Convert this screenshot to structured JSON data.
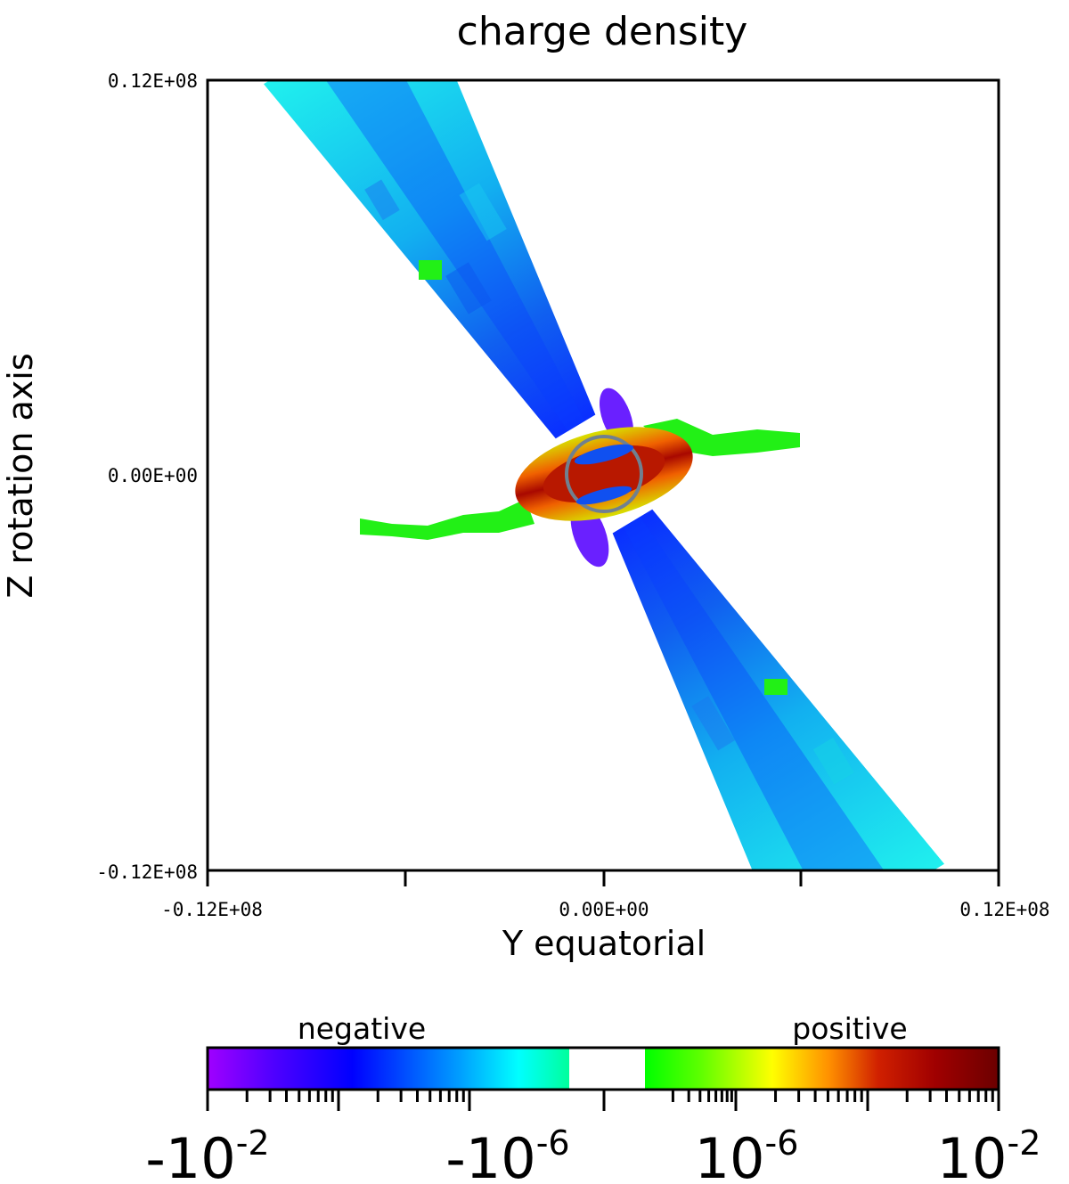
{
  "chart_data": {
    "type": "heatmap",
    "title": "charge density",
    "xlabel": "Y equatorial",
    "ylabel": "Z rotation axis",
    "x_ticks": [
      "-0.12E+08",
      "0.00E+00",
      "0.12E+08"
    ],
    "y_ticks": [
      "0.12E+08",
      "0.00E+00",
      "-0.12E+08"
    ],
    "xlim": [
      -12000000,
      12000000
    ],
    "ylim": [
      -12000000,
      12000000
    ],
    "colorbar": {
      "scale": "symmetric-log",
      "range": [
        -0.01,
        0.01
      ],
      "negative_label": "negative",
      "positive_label": "positive",
      "tick_labels": [
        {
          "base": "-10",
          "exp": "-2"
        },
        {
          "base": "-10",
          "exp": "-6"
        },
        {
          "base": "10",
          "exp": "-6"
        },
        {
          "base": "10",
          "exp": "-2"
        }
      ],
      "colors_negative": [
        "#a000ff",
        "#0000ff",
        "#00ffff",
        "#00ff90"
      ],
      "colors_positive": [
        "#00ff00",
        "#ffff00",
        "#ff8000",
        "#b00000",
        "#700000"
      ]
    },
    "features": {
      "jet_tilt_deg": 30,
      "star_radius": 1100000,
      "jet_colors_inner": "#0a4ff0",
      "jet_colors_outer": "#1eeaf0",
      "equatorial_core_color": "#d04000"
    }
  }
}
